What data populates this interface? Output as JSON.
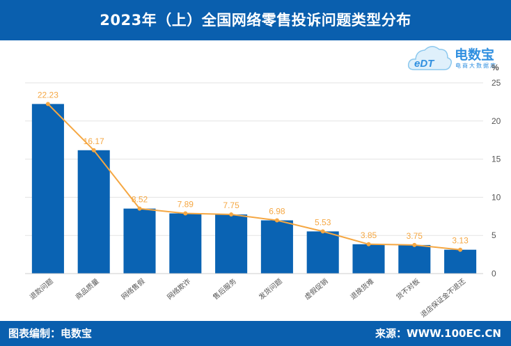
{
  "title": "2023年（上）全国网络零售投诉问题类型分布",
  "logo": {
    "brand": "电数宝",
    "sub": "电商大数据库",
    "mark": "eDT"
  },
  "footer": {
    "left": "图表编制：电数宝",
    "right": "来源：WWW.100EC.CN"
  },
  "chart_data": {
    "type": "bar",
    "categories": [
      "退款问题",
      "商品质量",
      "网络售假",
      "网络欺诈",
      "售后服务",
      "发货问题",
      "虚假促销",
      "退换货难",
      "货不对板",
      "退店保证金不退还"
    ],
    "series": [
      {
        "values": [
          22.23,
          16.17,
          8.52,
          7.89,
          7.75,
          6.98,
          5.53,
          3.85,
          3.75,
          3.13
        ]
      }
    ],
    "line_series": {
      "values": [
        22.23,
        16.17,
        8.52,
        7.89,
        7.75,
        6.98,
        5.53,
        3.85,
        3.75,
        3.13
      ]
    },
    "data_labels": [
      "22.23",
      "16.17",
      "8.52",
      "7.89",
      "7.75",
      "6.98",
      "5.53",
      "3.85",
      "3.75",
      "3.13"
    ],
    "y_axis": {
      "position": "right",
      "unit": "%",
      "min": 0,
      "max": 25,
      "ticks": [
        0,
        5,
        10,
        15,
        20,
        25
      ]
    },
    "grid": true,
    "colors": {
      "bar": "#0a63b3",
      "line": "#f5a742",
      "label": "#f5a742",
      "grid": "#e3e3e3",
      "axis_text": "#555555"
    }
  }
}
